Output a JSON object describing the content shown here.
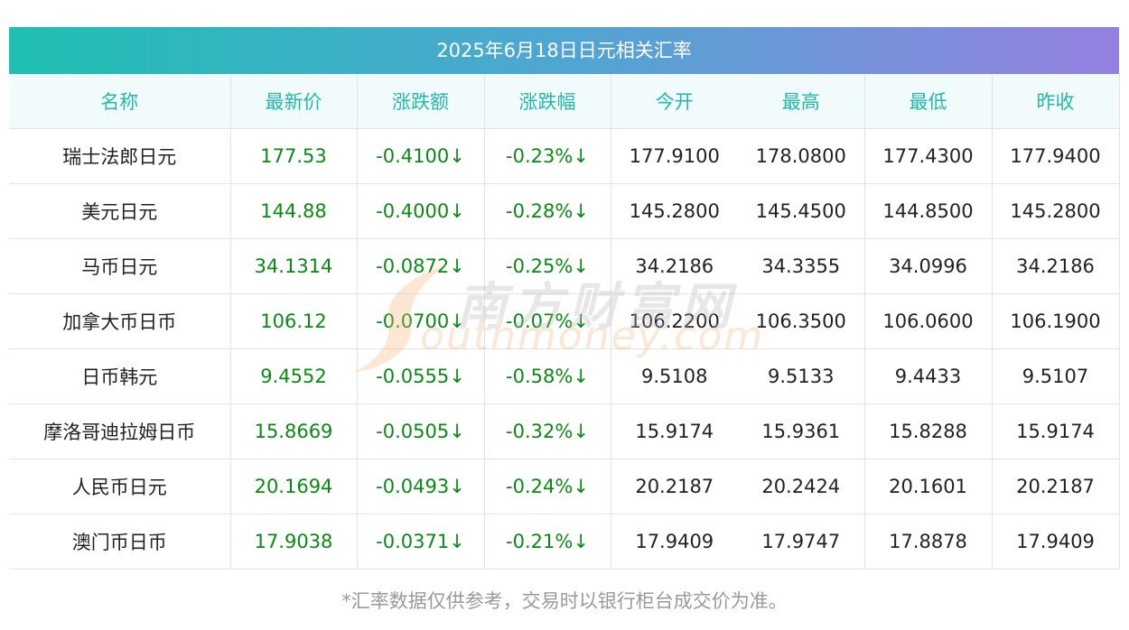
{
  "title": "2025年6月18日日元相关汇率",
  "columns": [
    "名称",
    "最新价",
    "涨跌额",
    "涨跌幅",
    "今开",
    "最高",
    "最低",
    "昨收"
  ],
  "rows": [
    {
      "name": "瑞士法郎日元",
      "latest": "177.53",
      "change": "-0.4100↓",
      "change_pct": "-0.23%↓",
      "open": "177.9100",
      "high": "178.0800",
      "low": "177.4300",
      "prev_close": "177.9400"
    },
    {
      "name": "美元日元",
      "latest": "144.88",
      "change": "-0.4000↓",
      "change_pct": "-0.28%↓",
      "open": "145.2800",
      "high": "145.4500",
      "low": "144.8500",
      "prev_close": "145.2800"
    },
    {
      "name": "马币日元",
      "latest": "34.1314",
      "change": "-0.0872↓",
      "change_pct": "-0.25%↓",
      "open": "34.2186",
      "high": "34.3355",
      "low": "34.0996",
      "prev_close": "34.2186"
    },
    {
      "name": "加拿大币日币",
      "latest": "106.12",
      "change": "-0.0700↓",
      "change_pct": "-0.07%↓",
      "open": "106.2200",
      "high": "106.3500",
      "low": "106.0600",
      "prev_close": "106.1900"
    },
    {
      "name": "日币韩元",
      "latest": "9.4552",
      "change": "-0.0555↓",
      "change_pct": "-0.58%↓",
      "open": "9.5108",
      "high": "9.5133",
      "low": "9.4433",
      "prev_close": "9.5107"
    },
    {
      "name": "摩洛哥迪拉姆日币",
      "latest": "15.8669",
      "change": "-0.0505↓",
      "change_pct": "-0.32%↓",
      "open": "15.9174",
      "high": "15.9361",
      "low": "15.8288",
      "prev_close": "15.9174"
    },
    {
      "name": "人民币日元",
      "latest": "20.1694",
      "change": "-0.0493↓",
      "change_pct": "-0.24%↓",
      "open": "20.2187",
      "high": "20.2424",
      "low": "20.1601",
      "prev_close": "20.2187"
    },
    {
      "name": "澳门币日币",
      "latest": "17.9038",
      "change": "-0.0371↓",
      "change_pct": "-0.21%↓",
      "open": "17.9409",
      "high": "17.9747",
      "low": "17.8878",
      "prev_close": "17.9409"
    }
  ],
  "watermark": {
    "cn": "南方财富网",
    "en": "outhmoney.com"
  },
  "footnote": "*汇率数据仅供参考，交易时以银行柜台成交价为准。",
  "colors": {
    "gradient_start": "#1fbfb2",
    "gradient_end": "#9580e0",
    "header_text": "#25b7ad",
    "header_bg": "#f1fbfc",
    "down_green": "#0a8a14",
    "body_text": "#222222"
  }
}
